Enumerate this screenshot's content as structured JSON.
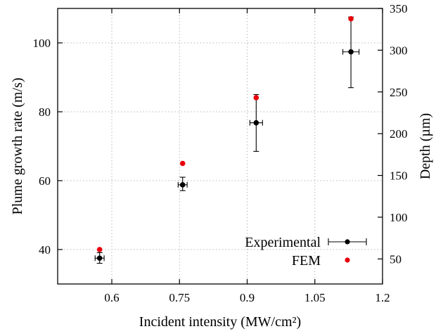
{
  "chart_data": {
    "type": "scatter",
    "xlabel": "Incident intensity (MW/cm²)",
    "ylabel": "Plume growth rate (m/s)",
    "y2label": "Depth (µm)",
    "xlim": [
      0.48,
      1.2
    ],
    "ylim": [
      30,
      110
    ],
    "y2lim": [
      20,
      350
    ],
    "xticks": [
      "0.6",
      "0.75",
      "0.9",
      "1.05",
      "1.2"
    ],
    "xtick_values": [
      0.6,
      0.75,
      0.9,
      1.05,
      1.2
    ],
    "yticks": [
      "40",
      "60",
      "80",
      "100"
    ],
    "ytick_values": [
      40,
      60,
      80,
      100
    ],
    "y2ticks": [
      "50",
      "100",
      "150",
      "200",
      "250",
      "300",
      "350"
    ],
    "y2tick_values": [
      50,
      100,
      150,
      200,
      250,
      300,
      350
    ],
    "grid": true,
    "legend_position": "bottom-right",
    "series": [
      {
        "name": "Experimental",
        "color": "#000000",
        "marker": "circle",
        "x": [
          0.573,
          0.757,
          0.92,
          1.13
        ],
        "y": [
          37.5,
          58.8,
          76.8,
          97.4
        ],
        "x_err": [
          0.01,
          0.01,
          0.014,
          0.018
        ],
        "y_err_low": [
          1.5,
          1.7,
          8.3,
          10.4
        ],
        "y_err_high": [
          1.6,
          2.2,
          8.2,
          10.1
        ]
      },
      {
        "name": "FEM",
        "color": "#e8000b",
        "marker": "circle",
        "x": [
          0.573,
          0.757,
          0.92,
          1.13
        ],
        "y": [
          40.0,
          65.0,
          84.1,
          107.0
        ]
      }
    ]
  }
}
